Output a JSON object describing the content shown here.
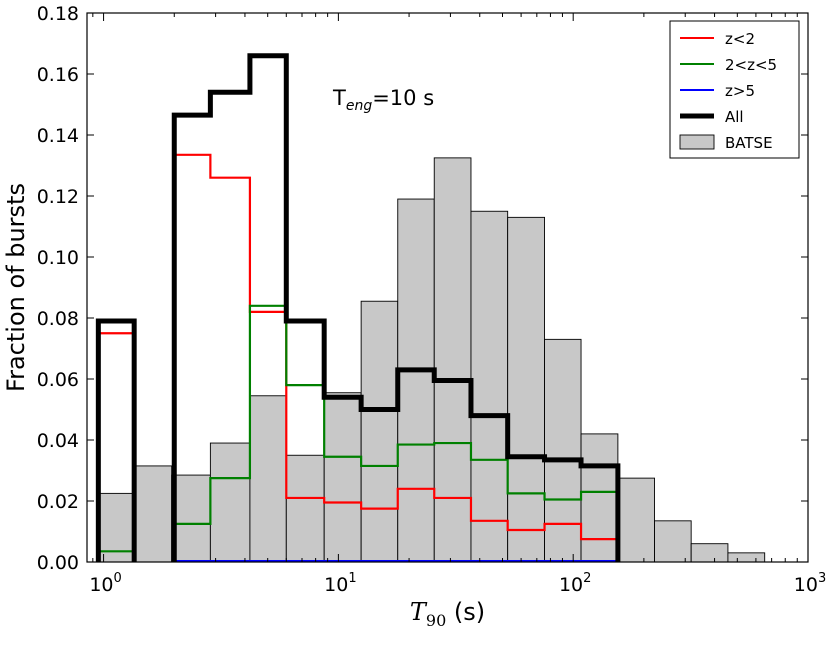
{
  "chart_data": {
    "type": "histogram-step",
    "xscale": "log",
    "xlim": [
      0.85,
      1000
    ],
    "ylim": [
      0,
      0.18
    ],
    "ylabel": "Fraction of bursts",
    "xlabel": {
      "var": "T",
      "sub": "90",
      "unit": " (s)"
    },
    "annotation": {
      "prefix": "T",
      "sub": "eng",
      "suffix": "=10 s"
    },
    "yticks": [
      "0.00",
      "0.02",
      "0.04",
      "0.06",
      "0.08",
      "0.10",
      "0.12",
      "0.14",
      "0.16",
      "0.18"
    ],
    "yticks_values": [
      0,
      0.02,
      0.04,
      0.06,
      0.08,
      0.1,
      0.12,
      0.14,
      0.16,
      0.18
    ],
    "xticks": [
      {
        "value": 1,
        "base": "10",
        "exp": "0"
      },
      {
        "value": 10,
        "base": "10",
        "exp": "1"
      },
      {
        "value": 100,
        "base": "10",
        "exp": "2"
      },
      {
        "value": 1000,
        "base": "10",
        "exp": "3"
      }
    ],
    "batse": {
      "name": "BATSE",
      "color": "#c8c8c8",
      "edges": [
        0.95,
        1.35,
        1.95,
        2.85,
        4.2,
        6.0,
        8.7,
        12.5,
        17.9,
        25.6,
        36.7,
        52.6,
        75.5,
        108,
        155,
        222,
        318,
        456,
        654
      ],
      "values": [
        0.0225,
        0.0315,
        0.0285,
        0.039,
        0.0545,
        0.035,
        0.0555,
        0.0855,
        0.119,
        0.1325,
        0.115,
        0.113,
        0.073,
        0.042,
        0.0275,
        0.0135,
        0.006,
        0.003
      ]
    },
    "series": [
      {
        "name": "z<2",
        "color": "#ff0000",
        "width": 2.2,
        "segments": [
          {
            "edges": [
              0.95,
              1.35
            ],
            "values": [
              0.075
            ]
          },
          {
            "edges": [
              2.0,
              2.85,
              4.2,
              6.0,
              8.7,
              12.5,
              17.9,
              25.6,
              36.7,
              52.6,
              75.5,
              108,
              155
            ],
            "values": [
              0.1335,
              0.126,
              0.082,
              0.021,
              0.0195,
              0.0175,
              0.024,
              0.021,
              0.0135,
              0.0105,
              0.0125,
              0.0075
            ]
          }
        ]
      },
      {
        "name": "2<z<5",
        "color": "#008000",
        "width": 2.2,
        "segments": [
          {
            "edges": [
              0.95,
              1.35
            ],
            "values": [
              0.0035
            ]
          },
          {
            "edges": [
              2.0,
              2.85,
              4.2,
              6.0,
              8.7,
              12.5,
              17.9,
              25.6,
              36.7,
              52.6,
              75.5,
              108,
              155
            ],
            "values": [
              0.0125,
              0.0275,
              0.084,
              0.058,
              0.0345,
              0.0315,
              0.0385,
              0.039,
              0.0335,
              0.0225,
              0.0205,
              0.023
            ]
          }
        ]
      },
      {
        "name": "z>5",
        "color": "#0000ff",
        "width": 2.2,
        "segments": [
          {
            "edges": [
              2.0,
              155
            ],
            "values": [
              0.0003
            ]
          }
        ]
      },
      {
        "name": "All",
        "color": "#000000",
        "width": 5,
        "segments": [
          {
            "edges": [
              0.95,
              1.35
            ],
            "values": [
              0.079
            ]
          },
          {
            "edges": [
              2.0,
              2.85,
              4.2,
              6.0,
              8.7,
              12.5,
              17.9,
              25.6,
              36.7,
              52.6,
              75.5,
              108,
              155
            ],
            "values": [
              0.1465,
              0.154,
              0.166,
              0.079,
              0.054,
              0.05,
              0.063,
              0.0595,
              0.048,
              0.0345,
              0.0335,
              0.0315
            ]
          }
        ]
      }
    ],
    "legend": {
      "position": "top-right",
      "entries": [
        {
          "label": "z<2",
          "kind": "line",
          "color": "#ff0000",
          "width": 2
        },
        {
          "label": "2<z<5",
          "kind": "line",
          "color": "#008000",
          "width": 2
        },
        {
          "label": "z>5",
          "kind": "line",
          "color": "#0000ff",
          "width": 2
        },
        {
          "label": "All",
          "kind": "line",
          "color": "#000000",
          "width": 5
        },
        {
          "label": "BATSE",
          "kind": "patch",
          "color": "#c8c8c8"
        }
      ]
    }
  }
}
